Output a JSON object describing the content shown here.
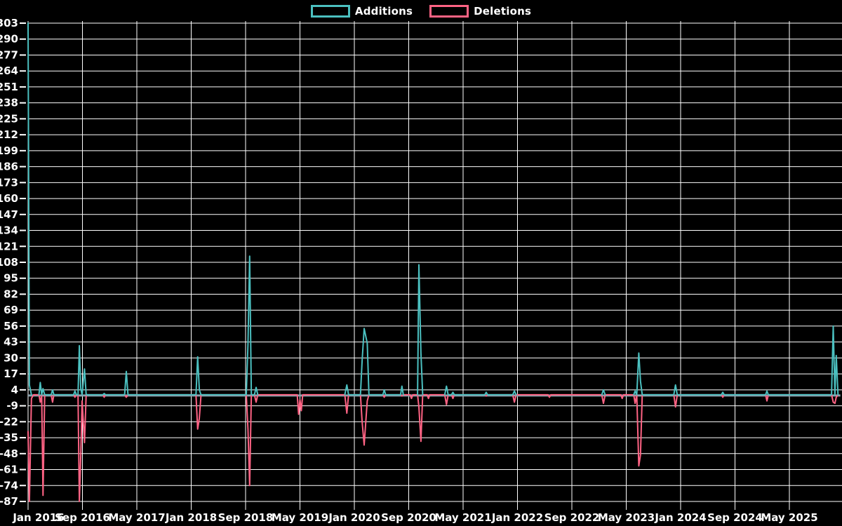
{
  "legend": {
    "items": [
      {
        "label": "Additions",
        "color": "#4BC0C0"
      },
      {
        "label": "Deletions",
        "color": "#FF6384"
      }
    ]
  },
  "chart_data": {
    "type": "line",
    "title": "",
    "xlabel": "",
    "ylabel": "",
    "grid": true,
    "legend_position": "top-center",
    "x_axis": {
      "tick_labels": [
        "Jan 2016",
        "Sep 2016",
        "May 2017",
        "Jan 2018",
        "Sep 2018",
        "May 2019",
        "Jan 2020",
        "Sep 2020",
        "May 2021",
        "Jan 2022",
        "Sep 2022",
        "May 2023",
        "Jan 2024",
        "Sep 2024",
        "May 2025"
      ],
      "months_per_tick": 8,
      "start": "Jan 2016"
    },
    "y_axis": {
      "min": -87,
      "max": 303,
      "tick_step": 13,
      "tick_labels": [
        303,
        290,
        277,
        264,
        251,
        238,
        225,
        212,
        199,
        186,
        173,
        160,
        147,
        134,
        121,
        108,
        95,
        82,
        69,
        56,
        43,
        30,
        17,
        4,
        -9,
        -22,
        -35,
        -48,
        -61,
        -74,
        -87
      ]
    },
    "colors": {
      "background": "#000000",
      "grid": "#ffffff",
      "text": "#ffffff",
      "additions": "#4BC0C0",
      "deletions": "#FF6384",
      "zero_baseline_blend": "#8aa2ae"
    },
    "series_names": [
      "Additions",
      "Deletions"
    ],
    "points_format": "[months_since_jan_2016, additions, deletions]",
    "points": [
      [
        0,
        310,
        -30
      ],
      [
        0.2,
        8,
        -87
      ],
      [
        0.5,
        0,
        -3
      ],
      [
        0.8,
        0,
        0
      ],
      [
        1.6,
        0,
        0
      ],
      [
        1.8,
        10,
        -6
      ],
      [
        2.0,
        0,
        0
      ],
      [
        2.2,
        5,
        -82
      ],
      [
        2.45,
        0,
        0
      ],
      [
        3.4,
        0,
        0
      ],
      [
        3.6,
        4,
        -6
      ],
      [
        3.8,
        0,
        0
      ],
      [
        6.7,
        0,
        0
      ],
      [
        6.9,
        3,
        -2
      ],
      [
        7.1,
        0,
        0
      ],
      [
        7.35,
        0,
        0
      ],
      [
        7.55,
        40,
        -87
      ],
      [
        7.75,
        5,
        -50
      ],
      [
        7.95,
        0,
        -5
      ],
      [
        8.3,
        21,
        -39
      ],
      [
        8.55,
        0,
        0
      ],
      [
        11.0,
        0,
        0
      ],
      [
        11.2,
        1,
        -2
      ],
      [
        11.4,
        0,
        0
      ],
      [
        14.2,
        0,
        0
      ],
      [
        14.45,
        19,
        -2
      ],
      [
        14.7,
        0,
        0
      ],
      [
        24.7,
        0,
        0
      ],
      [
        24.95,
        31,
        -28
      ],
      [
        25.2,
        4,
        -19
      ],
      [
        25.45,
        0,
        0
      ],
      [
        32.1,
        0,
        0
      ],
      [
        32.35,
        41,
        -28
      ],
      [
        32.6,
        113,
        -74
      ],
      [
        32.85,
        0,
        0
      ],
      [
        33.3,
        0,
        0
      ],
      [
        33.55,
        6,
        -6
      ],
      [
        33.8,
        0,
        0
      ],
      [
        39.6,
        0,
        0
      ],
      [
        39.8,
        0,
        -16
      ],
      [
        40.0,
        0,
        -4
      ],
      [
        40.2,
        0,
        -13
      ],
      [
        40.4,
        0,
        0
      ],
      [
        46.6,
        0,
        0
      ],
      [
        46.9,
        8,
        -15
      ],
      [
        47.15,
        0,
        0
      ],
      [
        48.9,
        0,
        0
      ],
      [
        49.15,
        28,
        -22
      ],
      [
        49.45,
        54,
        -41
      ],
      [
        49.9,
        42,
        -5
      ],
      [
        50.15,
        0,
        0
      ],
      [
        52.2,
        0,
        0
      ],
      [
        52.4,
        4,
        -2
      ],
      [
        52.6,
        0,
        0
      ],
      [
        54.8,
        0,
        0
      ],
      [
        55.0,
        7,
        -1
      ],
      [
        55.2,
        0,
        0
      ],
      [
        56.2,
        0,
        0
      ],
      [
        56.4,
        0,
        -3
      ],
      [
        56.6,
        0,
        0
      ],
      [
        57.3,
        0,
        0
      ],
      [
        57.5,
        106,
        -10
      ],
      [
        57.8,
        34,
        -38
      ],
      [
        58.05,
        0,
        0
      ],
      [
        58.7,
        0,
        0
      ],
      [
        58.9,
        0,
        -3
      ],
      [
        59.1,
        0,
        0
      ],
      [
        61.3,
        0,
        0
      ],
      [
        61.55,
        7,
        -8
      ],
      [
        61.8,
        0,
        0
      ],
      [
        62.3,
        0,
        0
      ],
      [
        62.5,
        2,
        -3
      ],
      [
        62.7,
        0,
        0
      ],
      [
        67.2,
        0,
        0
      ],
      [
        67.4,
        2,
        -1
      ],
      [
        67.6,
        0,
        0
      ],
      [
        71.3,
        0,
        0
      ],
      [
        71.55,
        3,
        -6
      ],
      [
        71.8,
        0,
        0
      ],
      [
        76.5,
        0,
        0
      ],
      [
        76.7,
        0,
        -2
      ],
      [
        76.9,
        0,
        0
      ],
      [
        84.4,
        0,
        0
      ],
      [
        84.65,
        4,
        -7
      ],
      [
        84.9,
        0,
        0
      ],
      [
        87.2,
        0,
        0
      ],
      [
        87.4,
        0,
        -3
      ],
      [
        87.6,
        0,
        0
      ],
      [
        89.1,
        0,
        0
      ],
      [
        89.3,
        3,
        -7
      ],
      [
        89.55,
        0,
        0
      ],
      [
        89.85,
        34,
        -58
      ],
      [
        90.1,
        11,
        -49
      ],
      [
        90.35,
        0,
        0
      ],
      [
        95.0,
        0,
        0
      ],
      [
        95.25,
        8,
        -10
      ],
      [
        95.5,
        0,
        0
      ],
      [
        102.0,
        0,
        0
      ],
      [
        102.2,
        2,
        -2
      ],
      [
        102.4,
        0,
        0
      ],
      [
        108.5,
        0,
        0
      ],
      [
        108.7,
        3,
        -5
      ],
      [
        108.9,
        0,
        0
      ],
      [
        118.2,
        0,
        0
      ],
      [
        118.45,
        56,
        -6
      ],
      [
        118.7,
        0,
        -7
      ],
      [
        118.9,
        32,
        -2
      ],
      [
        119.15,
        0,
        0
      ],
      [
        119.5,
        0,
        0
      ]
    ]
  }
}
